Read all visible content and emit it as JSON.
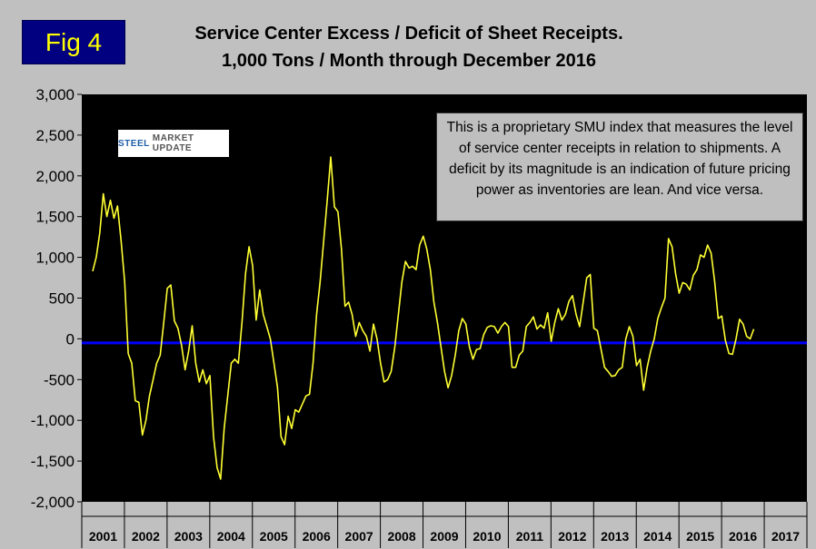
{
  "fig_label": "Fig 4",
  "title_line1": "Service Center Excess / Deficit of Sheet Receipts.",
  "title_line2": "1,000 Tons / Month through December 2016",
  "annotation": "This is a proprietary SMU index that measures the level of service center receipts in relation to shipments. A deficit by its magnitude is an indication of future pricing power as inventories are lean. And vice versa.",
  "logo_text": {
    "part1": "STEEL",
    "part2": "MARKET UPDATE"
  },
  "colors": {
    "background": "#c0c0c0",
    "plot_bg": "#000000",
    "series": "#ffff33",
    "baseline": "#0000ff",
    "fig_label_bg": "#000080",
    "fig_label_text": "#ffff00"
  },
  "chart_data": {
    "type": "line",
    "title": "Service Center Excess / Deficit of Sheet Receipts. 1,000 Tons / Month through December 2016",
    "xlabel": "",
    "ylabel": "",
    "ylim": [
      -2000,
      3000
    ],
    "yticks": [
      3000,
      2500,
      2000,
      1500,
      1000,
      500,
      0,
      -500,
      -1000,
      -1500,
      -2000
    ],
    "ytick_labels": [
      "3,000",
      "2,500",
      "2,000",
      "1,500",
      "1,000",
      "500",
      "0",
      "-500",
      "-1,000",
      "-1,500",
      "-2,000"
    ],
    "x_categories": [
      "2001",
      "2002",
      "2003",
      "2004",
      "2005",
      "2006",
      "2007",
      "2008",
      "2009",
      "2010",
      "2011",
      "2012",
      "2013",
      "2014",
      "2015",
      "2016",
      "2017"
    ],
    "baseline_value": -50,
    "grid": false,
    "series": [
      {
        "name": "Excess / Deficit (1,000 tons)",
        "frequency": "monthly",
        "start": "2001-01",
        "values": [
          830,
          1000,
          1300,
          1780,
          1500,
          1700,
          1480,
          1630,
          1200,
          700,
          -180,
          -300,
          -760,
          -780,
          -1180,
          -1000,
          -700,
          -500,
          -300,
          -200,
          200,
          620,
          660,
          220,
          130,
          -80,
          -380,
          -150,
          160,
          -300,
          -530,
          -380,
          -550,
          -450,
          -1200,
          -1580,
          -1720,
          -1100,
          -700,
          -300,
          -250,
          -300,
          200,
          800,
          1130,
          900,
          230,
          600,
          300,
          150,
          0,
          -300,
          -600,
          -1200,
          -1300,
          -950,
          -1100,
          -870,
          -900,
          -800,
          -700,
          -680,
          -300,
          300,
          700,
          1200,
          1700,
          2230,
          1620,
          1560,
          1100,
          400,
          450,
          300,
          30,
          200,
          100,
          30,
          -150,
          180,
          0,
          -300,
          -530,
          -500,
          -400,
          -100,
          300,
          700,
          950,
          870,
          890,
          850,
          1150,
          1260,
          1100,
          850,
          450,
          200,
          -100,
          -400,
          -600,
          -450,
          -200,
          100,
          250,
          180,
          -100,
          -250,
          -130,
          -120,
          50,
          140,
          160,
          150,
          70,
          150,
          200,
          150,
          -350,
          -350,
          -200,
          -150,
          150,
          200,
          270,
          120,
          170,
          130,
          320,
          -30,
          200,
          370,
          230,
          300,
          460,
          530,
          300,
          150,
          450,
          750,
          790,
          130,
          100,
          -120,
          -350,
          -400,
          -460,
          -450,
          -380,
          -350,
          0,
          150,
          30,
          -330,
          -250,
          -630,
          -350,
          -150,
          0,
          250,
          380,
          500,
          1230,
          1130,
          800,
          560,
          690,
          670,
          600,
          780,
          850,
          1030,
          1000,
          1150,
          1050,
          700,
          250,
          280,
          -20,
          -180,
          -190,
          0,
          240,
          180,
          30,
          0,
          120
        ]
      }
    ]
  }
}
